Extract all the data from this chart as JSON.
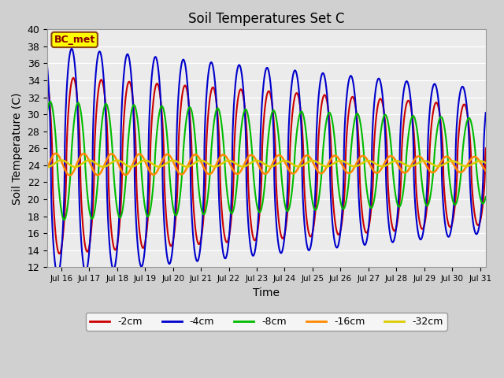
{
  "title": "Soil Temperatures Set C",
  "xlabel": "Time",
  "ylabel": "Soil Temperature (C)",
  "ylim": [
    12,
    40
  ],
  "xlim": [
    15.5,
    31.2
  ],
  "yticks": [
    12,
    14,
    16,
    18,
    20,
    22,
    24,
    26,
    28,
    30,
    32,
    34,
    36,
    38,
    40
  ],
  "xtick_positions": [
    16,
    17,
    18,
    19,
    20,
    21,
    22,
    23,
    24,
    25,
    26,
    27,
    28,
    29,
    30,
    31
  ],
  "xtick_labels": [
    "Jul 16",
    "Jul 17",
    "Jul 18",
    "Jul 19",
    "Jul 20",
    "Jul 21",
    "Jul 22",
    "Jul 23",
    "Jul 24",
    "Jul 25",
    "Jul 26",
    "Jul 27",
    "Jul 28",
    "Jul 29",
    "Jul 30",
    "Jul 31"
  ],
  "background_color": "#ebebeb",
  "fig_facecolor": "#d0d0d0",
  "annotation_text": "BC_met",
  "annotation_bg": "#ffff00",
  "annotation_border": "#8B4513"
}
